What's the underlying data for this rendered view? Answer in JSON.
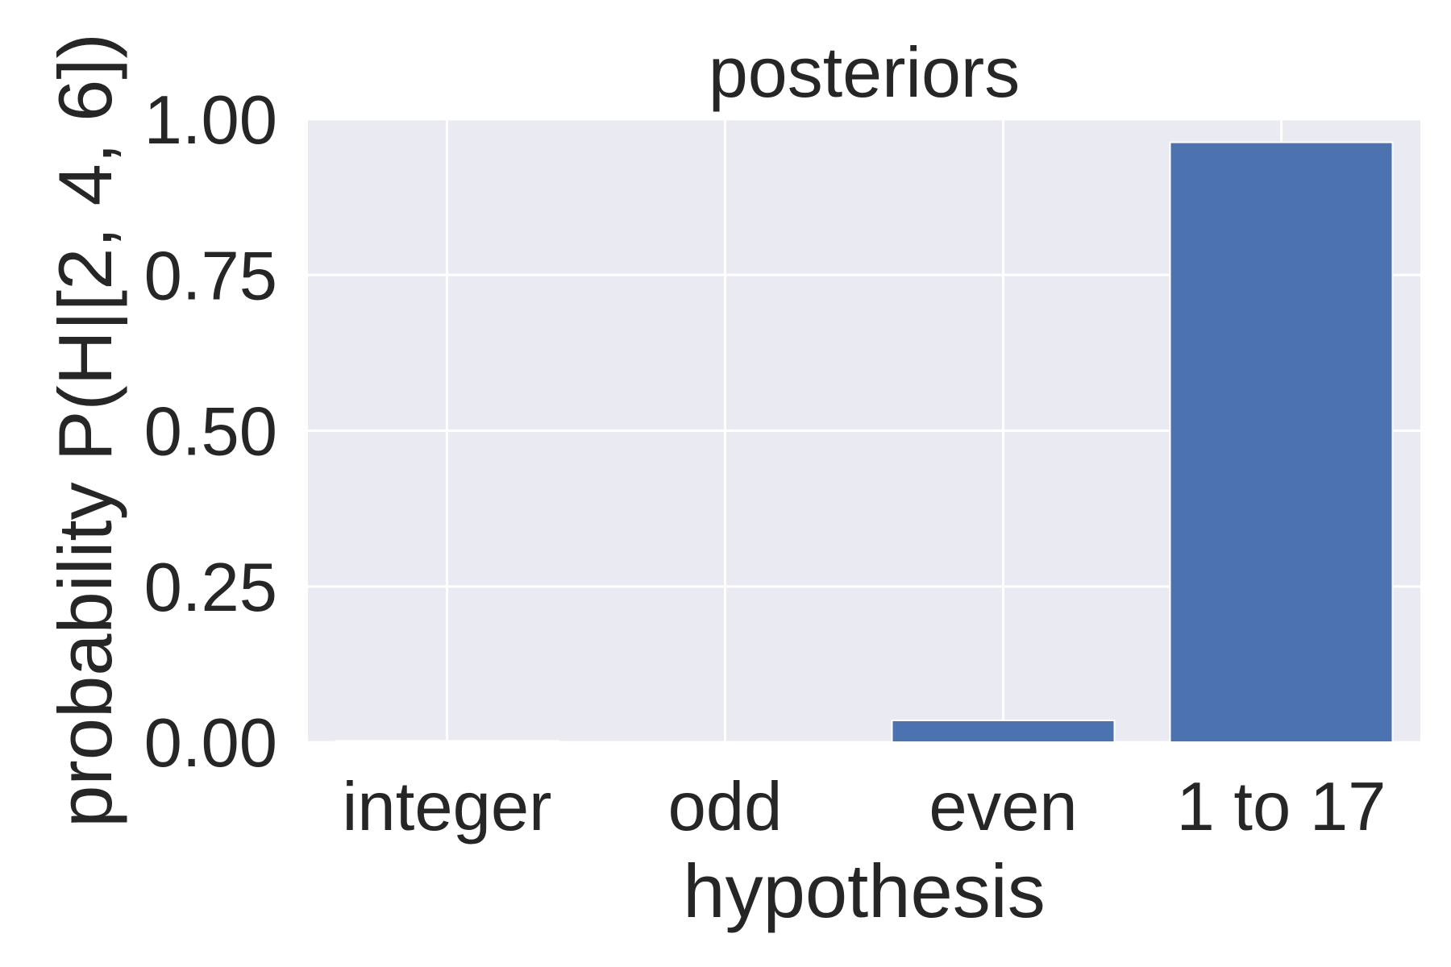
{
  "chart_data": {
    "type": "bar",
    "title": "posteriors",
    "xlabel": "hypothesis",
    "ylabel": "probability P(H|[2, 4, 6])",
    "categories": [
      "integer",
      "odd",
      "even",
      "1 to 17"
    ],
    "values": [
      0.002,
      0.0,
      0.035,
      0.963
    ],
    "ylim": [
      0,
      1
    ],
    "yticks": [
      0.0,
      0.25,
      0.5,
      0.75,
      1.0
    ],
    "ytick_labels": [
      "0.00",
      "0.25",
      "0.50",
      "0.75",
      "1.00"
    ],
    "grid": true,
    "bar_color": "#4C72B0",
    "background_color": "#EAEAF2",
    "grid_color": "#FFFFFF"
  }
}
